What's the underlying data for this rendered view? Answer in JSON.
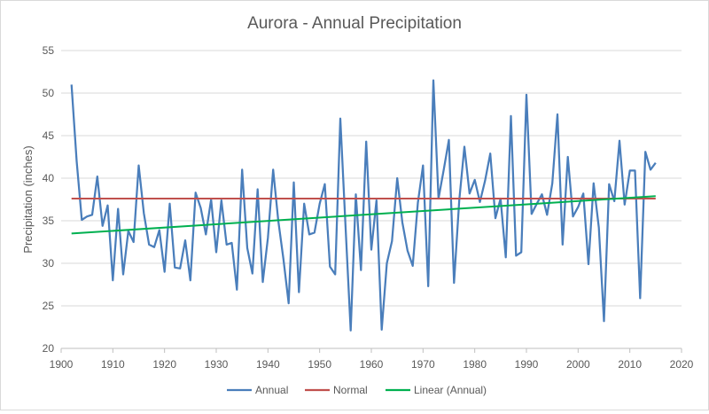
{
  "chart_data": {
    "type": "line",
    "title": "Aurora - Annual Precipitation",
    "xlabel": "",
    "ylabel": "Precipitation (inches)",
    "xlim": [
      1900,
      2020
    ],
    "ylim": [
      20,
      55
    ],
    "xticks": [
      1900,
      1910,
      1920,
      1930,
      1940,
      1950,
      1960,
      1970,
      1980,
      1990,
      2000,
      2010,
      2020
    ],
    "yticks": [
      20,
      25,
      30,
      35,
      40,
      45,
      50,
      55
    ],
    "grid": "horizontal",
    "legend": "bottom",
    "series": [
      {
        "name": "Annual",
        "color": "#4a7ebb",
        "x": [
          1902,
          1903,
          1904,
          1905,
          1906,
          1907,
          1908,
          1909,
          1910,
          1911,
          1912,
          1913,
          1914,
          1915,
          1916,
          1917,
          1918,
          1919,
          1920,
          1921,
          1922,
          1923,
          1924,
          1925,
          1926,
          1927,
          1928,
          1929,
          1930,
          1931,
          1932,
          1933,
          1934,
          1935,
          1936,
          1937,
          1938,
          1939,
          1940,
          1941,
          1942,
          1943,
          1944,
          1945,
          1946,
          1947,
          1948,
          1949,
          1950,
          1951,
          1952,
          1953,
          1954,
          1955,
          1956,
          1957,
          1958,
          1959,
          1960,
          1961,
          1962,
          1963,
          1964,
          1965,
          1966,
          1967,
          1968,
          1969,
          1970,
          1971,
          1972,
          1973,
          1974,
          1975,
          1976,
          1977,
          1978,
          1979,
          1980,
          1981,
          1982,
          1983,
          1984,
          1985,
          1986,
          1987,
          1988,
          1989,
          1990,
          1991,
          1992,
          1993,
          1994,
          1995,
          1996,
          1997,
          1998,
          1999,
          2000,
          2001,
          2002,
          2003,
          2004,
          2005,
          2006,
          2007,
          2008,
          2009,
          2010,
          2011,
          2012,
          2013,
          2014,
          2015
        ],
        "values": [
          51.0,
          42.0,
          35.1,
          35.5,
          35.7,
          40.2,
          34.4,
          36.8,
          28.0,
          36.4,
          28.7,
          33.8,
          32.5,
          41.5,
          35.9,
          32.2,
          31.9,
          33.9,
          29.0,
          37.0,
          29.5,
          29.4,
          32.7,
          28.0,
          38.3,
          36.5,
          33.4,
          37.5,
          31.3,
          37.4,
          32.2,
          32.4,
          26.9,
          41.0,
          31.8,
          28.8,
          38.7,
          27.8,
          33.0,
          41.0,
          35.0,
          30.5,
          25.3,
          39.5,
          26.6,
          37.0,
          33.4,
          33.6,
          37.0,
          39.3,
          29.6,
          28.7,
          47.0,
          34.5,
          22.1,
          38.1,
          29.2,
          44.3,
          31.6,
          37.4,
          22.2,
          30.0,
          32.6,
          40.0,
          34.8,
          31.5,
          29.7,
          37.1,
          41.5,
          27.3,
          51.5,
          37.6,
          41.0,
          44.5,
          27.7,
          37.4,
          43.7,
          38.2,
          39.8,
          37.2,
          39.7,
          42.9,
          35.3,
          37.6,
          30.7,
          47.3,
          30.9,
          31.3,
          49.8,
          35.8,
          37.0,
          38.1,
          35.7,
          39.4,
          47.5,
          32.2,
          42.5,
          35.5,
          36.6,
          38.2,
          29.9,
          39.4,
          34.2,
          23.2,
          39.3,
          37.3,
          44.4,
          36.9,
          40.9,
          40.9,
          25.9,
          43.1,
          41.0,
          41.8
        ]
      },
      {
        "name": "Normal",
        "color": "#c0504d",
        "x": [
          1902,
          2015
        ],
        "values": [
          37.6,
          37.6
        ]
      },
      {
        "name": "Linear (Annual)",
        "color": "#00b050",
        "x": [
          1902,
          2015
        ],
        "values": [
          33.5,
          37.9
        ]
      }
    ]
  }
}
